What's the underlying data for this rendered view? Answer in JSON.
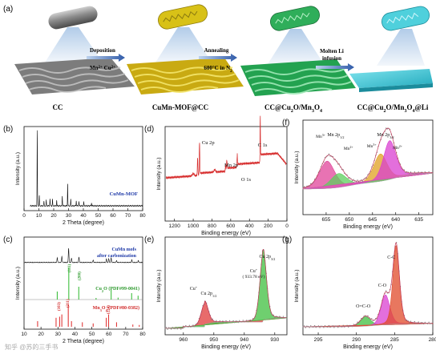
{
  "figure": {
    "panel_labels": {
      "a": "(a)",
      "b": "(b)",
      "c": "(c)",
      "d": "(d)",
      "e": "(e)",
      "f": "(f)",
      "g": "(g)"
    },
    "scheme": {
      "stage_labels": [
        "CC",
        "CuMn-MOF@CC",
        "CC@Cu",
        "O/Mn",
        "O",
        "@Li"
      ],
      "stage1": "CC",
      "stage2": "CuMn-MOF@CC",
      "stage3_parts": [
        "CC@Cu",
        "2",
        "O/Mn",
        "3",
        "O",
        "4"
      ],
      "stage4_parts": [
        "CC@Cu",
        "2",
        "O/Mn",
        "3",
        "O",
        "4",
        "@Li"
      ],
      "arrow1_line1": "Deposition",
      "arrow1_line2": "Mn",
      "arrow1_line2b": "2+",
      "arrow1_line2c": " Cu",
      "arrow1_line2d": "2+",
      "arrow2_line1": "Annealing",
      "arrow2_line2": "600°C in N",
      "arrow2_line2b": "2",
      "arrow3_line1": "Molten Li",
      "arrow3_line2": "infusion",
      "colors": {
        "cc": "#9a9a9a",
        "mof": "#d9c21a",
        "oxide": "#2fb05a",
        "li": "#39c6d6"
      }
    },
    "watermark": "知乎 @苏的三手书"
  },
  "chart_data": [
    {
      "panel": "b",
      "type": "line",
      "xlabel": "2 Theta (degree)",
      "ylabel": "Intensity (a.u.)",
      "xlim": [
        0,
        80
      ],
      "xticks": [
        0,
        10,
        20,
        30,
        40,
        50,
        60,
        70,
        80
      ],
      "legend": "CuMn-MOF",
      "peaks": [
        [
          8.9,
          100
        ],
        [
          10.3,
          14
        ],
        [
          13.4,
          6
        ],
        [
          15.0,
          8
        ],
        [
          17.5,
          10
        ],
        [
          19.2,
          9
        ],
        [
          22.0,
          7
        ],
        [
          25.8,
          13
        ],
        [
          29.4,
          30
        ],
        [
          31.5,
          9
        ],
        [
          35.2,
          7
        ],
        [
          37.0,
          6
        ],
        [
          40.3,
          5
        ],
        [
          45.5,
          4
        ]
      ]
    },
    {
      "panel": "c",
      "type": "line",
      "xlabel": "2 Theta (degree)",
      "ylabel": "Intensity (a.u.)",
      "xlim": [
        10,
        80
      ],
      "xticks": [
        10,
        20,
        30,
        40,
        50,
        60,
        70,
        80
      ],
      "legend_line1": "CuMn mofs",
      "legend_line2": "after carbonization",
      "ref1_name": "Cu",
      "ref1_name_sub": "2",
      "ref1_name_rest": "O (PDF#99-0041)",
      "ref2_name": "Mn",
      "ref2_name_sub": "3",
      "ref2_name_mid": "O",
      "ref2_name_sub2": "4",
      "ref2_name_rest": " (PDF#80-0382)",
      "ref1_labels": [
        "(111)",
        "(200)"
      ],
      "ref2_labels": [
        "(103)",
        "(211)",
        "(224)"
      ],
      "cu2o_sticks": [
        [
          29.6,
          25
        ],
        [
          36.4,
          100
        ],
        [
          42.3,
          40
        ],
        [
          52.5,
          5
        ],
        [
          61.4,
          30
        ],
        [
          65.5,
          6
        ],
        [
          73.5,
          20
        ],
        [
          77.3,
          12
        ]
      ],
      "mn3o4_sticks": [
        [
          18.0,
          25
        ],
        [
          28.9,
          40
        ],
        [
          31.0,
          45
        ],
        [
          32.3,
          55
        ],
        [
          36.1,
          100
        ],
        [
          38.0,
          25
        ],
        [
          44.4,
          20
        ],
        [
          50.8,
          15
        ],
        [
          58.5,
          40
        ],
        [
          59.9,
          55
        ],
        [
          64.6,
          20
        ],
        [
          74.2,
          10
        ],
        [
          78.0,
          8
        ]
      ],
      "sample_peaks": [
        [
          29.6,
          20
        ],
        [
          32.3,
          25
        ],
        [
          36.3,
          60
        ],
        [
          38.0,
          18
        ],
        [
          42.4,
          22
        ],
        [
          50.8,
          10
        ],
        [
          58.6,
          14
        ],
        [
          60.0,
          16
        ],
        [
          61.4,
          18
        ],
        [
          64.6,
          8
        ],
        [
          73.6,
          10
        ],
        [
          77.4,
          8
        ]
      ]
    },
    {
      "panel": "d",
      "type": "line",
      "xlabel": "Binding energy (eV)",
      "ylabel": "Intensity (a.u.)",
      "xlim": [
        1300,
        0
      ],
      "xticks": [
        1200,
        1000,
        800,
        600,
        400,
        200,
        0
      ],
      "peak_labels": [
        "Cu 2p",
        "Mn 2p",
        "O 1s",
        "C 1s"
      ],
      "peak_positions": [
        933,
        642,
        531,
        285
      ]
    },
    {
      "panel": "e",
      "type": "area",
      "xlabel": "Binding energy (eV)",
      "ylabel": "Intensity (a.u.)",
      "xlim": [
        966,
        926
      ],
      "xticks": [
        960,
        950,
        940,
        930
      ],
      "peaks": [
        {
          "name": "Cu 2p1/2",
          "label_main": "Cu 2p",
          "label_sub": "1/2",
          "species": "Cu",
          "species_sup": "+",
          "center": 953.0,
          "height": 0.33,
          "color": "#e03a3a"
        },
        {
          "name": "Cu 2p3/2",
          "label_main": "Cu 2p",
          "label_sub": "3/2",
          "species": "Cu",
          "species_sup": "+",
          "center": 933.78,
          "height": 1.0,
          "color": "#3fbf3f",
          "note": "( 933.78 eV)"
        }
      ]
    },
    {
      "panel": "f",
      "type": "area",
      "xlabel": "Binding energy (eV)",
      "ylabel": "Intensity (a.u.)",
      "xlim": [
        660,
        632
      ],
      "xticks": [
        655,
        650,
        645,
        640,
        635
      ],
      "peaks": [
        {
          "species": "Mn",
          "sup": "3+",
          "center": 654.8,
          "height": 0.55,
          "color": "#e0449a"
        },
        {
          "species": "Mn",
          "sup": "2+",
          "center": 652.3,
          "height": 0.28,
          "color": "#5ccf5c"
        },
        {
          "species": "Mn",
          "sup": "3+",
          "center": 643.3,
          "height": 0.55,
          "color": "#e0a020"
        },
        {
          "species": "Mn",
          "sup": "2+",
          "center": 641.3,
          "height": 0.78,
          "color": "#d93fd0"
        }
      ],
      "labels": [
        "Mn 2p",
        "1/2",
        "Mn 2p",
        "3/2"
      ]
    },
    {
      "panel": "g",
      "type": "area",
      "xlabel": "Binding energy (eV)",
      "ylabel": "Intensity (a.u.)",
      "xlim": [
        297,
        280
      ],
      "xticks": [
        295,
        290,
        285,
        280
      ],
      "peaks": [
        {
          "name": "O=C-O",
          "center": 288.8,
          "height": 0.12,
          "color": "#3fbf3f"
        },
        {
          "name": "C-O",
          "center": 286.2,
          "height": 0.38,
          "color": "#d93fd0"
        },
        {
          "name": "C-C",
          "center": 284.8,
          "height": 1.0,
          "color": "#e04a2a"
        }
      ]
    }
  ]
}
